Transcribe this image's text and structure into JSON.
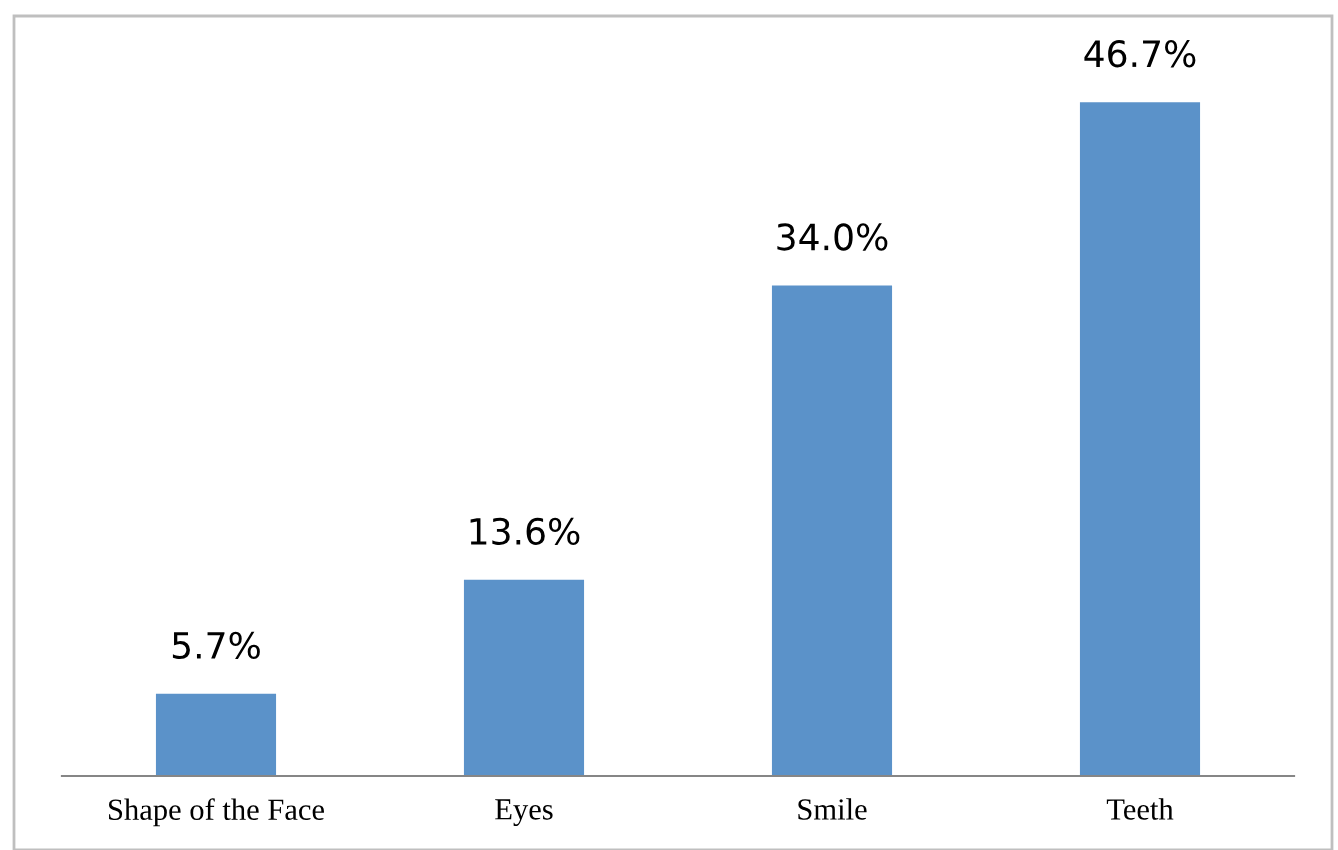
{
  "chart_data": {
    "type": "bar",
    "categories": [
      "Shape of the Face",
      "Eyes",
      "Smile",
      "Teeth"
    ],
    "values": [
      5.7,
      13.6,
      34.0,
      46.7
    ],
    "color": "#5b92c9",
    "value_labels": [
      "5.7%",
      "13.6%",
      "34.0%",
      "46.7%"
    ]
  }
}
